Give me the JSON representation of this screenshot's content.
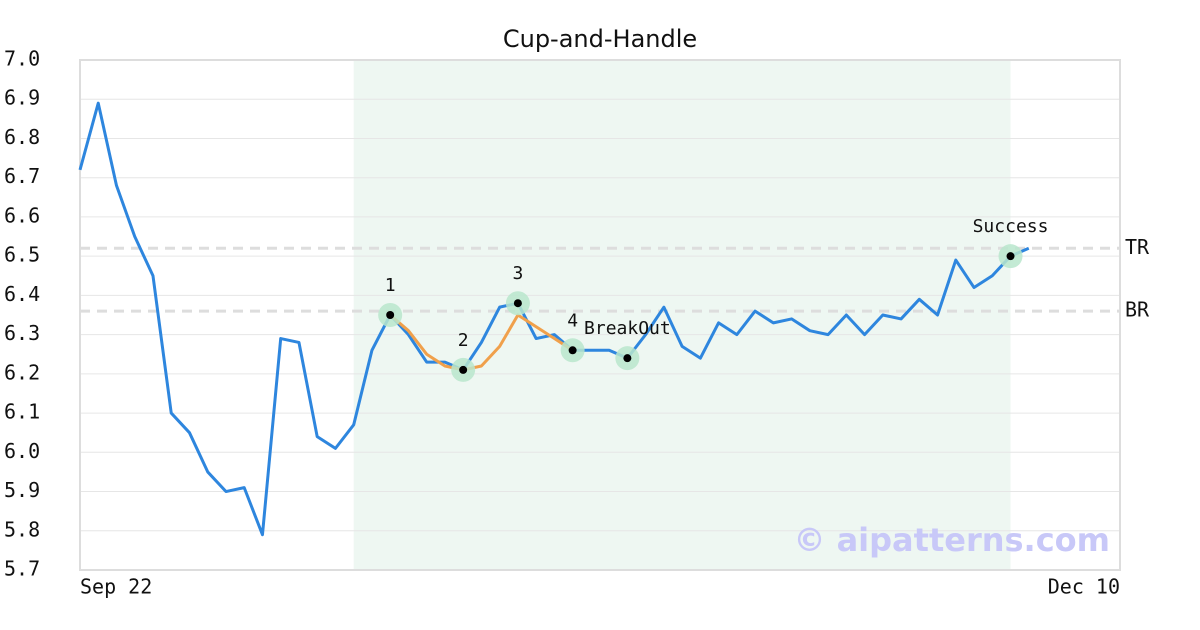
{
  "chart_data": {
    "type": "line",
    "title": "Cup-and-Handle",
    "x": [
      0,
      1,
      2,
      3,
      4,
      5,
      6,
      7,
      8,
      9,
      10,
      11,
      12,
      13,
      14,
      15,
      16,
      17,
      18,
      19,
      20,
      21,
      22,
      23,
      24,
      25,
      26,
      27,
      28,
      29,
      30,
      31,
      32,
      33,
      34,
      35,
      36,
      37,
      38,
      39,
      40,
      41,
      42,
      43,
      44,
      45,
      46,
      47,
      48,
      49,
      50,
      51,
      52
    ],
    "series": [
      {
        "color": "#2e86de",
        "values": [
          6.72,
          6.89,
          6.68,
          6.55,
          6.45,
          6.1,
          6.05,
          5.95,
          5.9,
          5.91,
          5.79,
          6.29,
          6.28,
          6.04,
          6.01,
          6.07,
          6.26,
          6.35,
          6.3,
          6.23,
          6.23,
          6.21,
          6.28,
          6.37,
          6.38,
          6.29,
          6.3,
          6.26,
          6.26,
          6.26,
          6.24,
          6.3,
          6.37,
          6.27,
          6.24,
          6.33,
          6.3,
          6.36,
          6.33,
          6.34,
          6.31,
          6.3,
          6.35,
          6.3,
          6.35,
          6.34,
          6.39,
          6.35,
          6.49,
          6.42,
          6.45,
          6.5,
          6.52
        ]
      },
      {
        "color": "#f0a04b",
        "values": [
          null,
          null,
          null,
          null,
          null,
          null,
          null,
          null,
          null,
          null,
          null,
          null,
          null,
          null,
          null,
          null,
          null,
          6.35,
          6.31,
          6.25,
          6.22,
          6.21,
          6.22,
          6.27,
          6.35,
          6.32,
          6.29,
          6.26,
          null,
          null,
          null,
          null,
          null,
          null,
          null,
          null,
          null,
          null,
          null,
          null,
          null,
          null,
          null,
          null,
          null,
          null,
          null,
          null,
          null,
          null,
          null,
          null,
          null
        ]
      }
    ],
    "xlim": [
      0,
      57
    ],
    "xticks": [
      {
        "value": 0,
        "label": "Sep 22"
      },
      {
        "value": 57,
        "label": "Dec 10"
      }
    ],
    "ylim": [
      5.7,
      7.0
    ],
    "yticks": [
      5.7,
      5.8,
      5.9,
      {
        "value": 6,
        "label": "6.0"
      },
      6.1,
      6.2,
      6.3,
      6.4,
      6.5,
      6.6,
      6.7,
      6.8,
      6.9,
      {
        "value": 7,
        "label": "7.0"
      }
    ],
    "grid": true,
    "shade": [
      15,
      51
    ],
    "levels": [
      {
        "label": "TR",
        "value": 6.52
      },
      {
        "label": "BR",
        "value": 6.36
      }
    ],
    "annotations": [
      {
        "label": "1",
        "x": 17,
        "y": 6.35
      },
      {
        "label": "2",
        "x": 21,
        "y": 6.21
      },
      {
        "label": "3",
        "x": 24,
        "y": 6.38
      },
      {
        "label": "4",
        "x": 27,
        "y": 6.26
      },
      {
        "label": "BreakOut",
        "x": 30,
        "y": 6.24
      },
      {
        "label": "Success",
        "x": 51,
        "y": 6.5
      }
    ],
    "watermark": "© aipatterns.com"
  }
}
